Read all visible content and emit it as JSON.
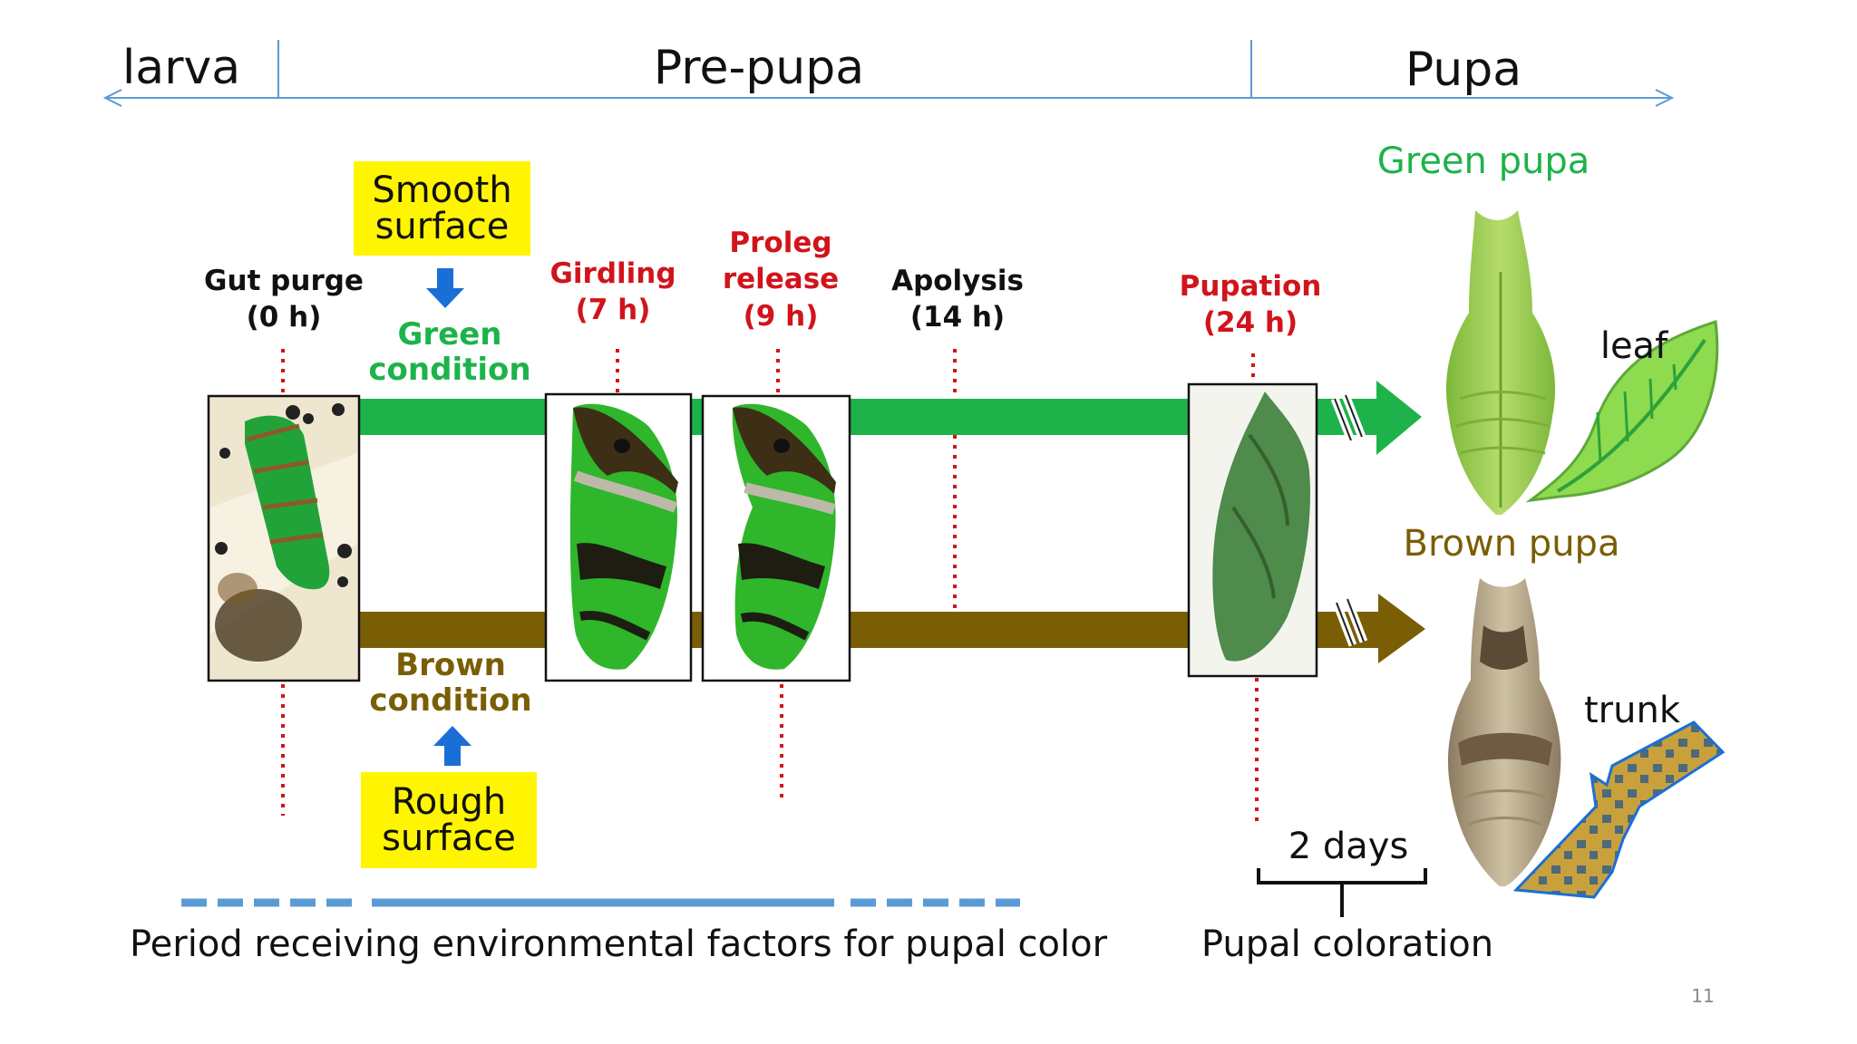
{
  "phases": {
    "larva": "larva",
    "prepupa": "Pre-pupa",
    "pupa": "Pupa"
  },
  "events": {
    "gut_purge": {
      "name": "Gut purge",
      "time": "(0 h)"
    },
    "girdling": {
      "name": "Girdling",
      "time": "(7 h)"
    },
    "proleg_release": {
      "name": "Proleg",
      "name2": "release",
      "time": "(9 h)"
    },
    "apolysis": {
      "name": "Apolysis",
      "time": "(14 h)"
    },
    "pupation": {
      "name": "Pupation",
      "time": "(24 h)"
    }
  },
  "conditions": {
    "smooth": {
      "line1": "Smooth",
      "line2": "surface"
    },
    "rough": {
      "line1": "Rough",
      "line2": "surface"
    },
    "green": {
      "line1": "Green",
      "line2": "condition"
    },
    "brown": {
      "line1": "Brown",
      "line2": "condition"
    }
  },
  "pupae": {
    "green": "Green pupa",
    "brown": "Brown pupa"
  },
  "substrates": {
    "leaf": "leaf",
    "trunk": "trunk"
  },
  "footer": {
    "period": "Period receiving environmental factors for pupal color",
    "two_days": "2 days",
    "coloration": "Pupal coloration"
  },
  "page_number": "11",
  "colors": {
    "green": "#1db34a",
    "brown": "#7a5e05",
    "red": "#d1141b",
    "blue_arrow": "#1a6fd6",
    "yellow": "#fff500",
    "timeline": "#5b9bd5"
  }
}
